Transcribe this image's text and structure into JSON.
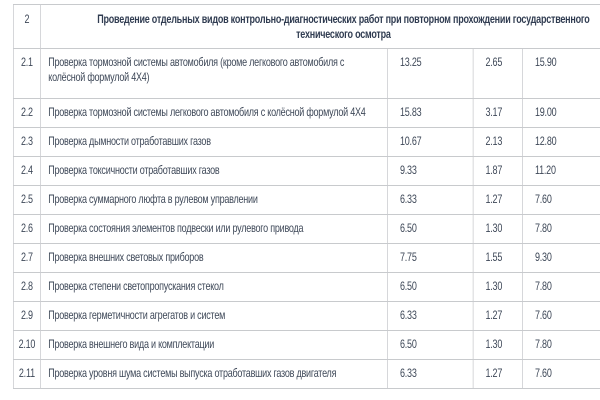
{
  "table": {
    "header": {
      "number": "2",
      "title_line1": "Проведение отдельных видов контрольно-диагностических работ при повторном прохождении государственного",
      "title_line2": "технического осмотра"
    },
    "rows": [
      {
        "num": "2.1",
        "desc": "Проверка тормозной системы автомобиля (кроме легкового автомобиля с колёсной формулой 4X4)",
        "v1": "13.25",
        "v2": "2.65",
        "v3": "15.90"
      },
      {
        "num": "2.2",
        "desc": "Проверка тормозной системы легкового автомобиля с колёсной формулой 4X4",
        "v1": "15.83",
        "v2": "3.17",
        "v3": "19.00"
      },
      {
        "num": "2.3",
        "desc": "Проверка дымности отработавших газов",
        "v1": "10.67",
        "v2": "2.13",
        "v3": "12.80"
      },
      {
        "num": "2.4",
        "desc": "Проверка токсичности отработавших газов",
        "v1": "9.33",
        "v2": "1.87",
        "v3": "11.20"
      },
      {
        "num": "2.5",
        "desc": "Проверка суммарного люфта в рулевом управлении",
        "v1": "6.33",
        "v2": "1.27",
        "v3": "7.60"
      },
      {
        "num": "2.6",
        "desc": "Проверка состояния элементов подвески или рулевого привода",
        "v1": "6.50",
        "v2": "1.30",
        "v3": "7.80"
      },
      {
        "num": "2.7",
        "desc": "Проверка внешних световых приборов",
        "v1": "7.75",
        "v2": "1.55",
        "v3": "9.30"
      },
      {
        "num": "2.8",
        "desc": "Проверка степени светопропускания стекол",
        "v1": "6.50",
        "v2": "1.30",
        "v3": "7.80"
      },
      {
        "num": "2.9",
        "desc": "Проверка герметичности агрегатов и систем",
        "v1": "6.33",
        "v2": "1.27",
        "v3": "7.60"
      },
      {
        "num": "2.10",
        "desc": "Проверка внешнего вида и комплектации",
        "v1": "6.50",
        "v2": "1.30",
        "v3": "7.80"
      },
      {
        "num": "2.11",
        "desc": "Проверка уровня шума системы выпуска отработавших газов двигателя",
        "v1": "6.33",
        "v2": "1.27",
        "v3": "7.60"
      }
    ],
    "colors": {
      "border": "#c8cacd",
      "body_text": "#3e4858",
      "header_text": "#303c51",
      "background": "#ffffff"
    }
  }
}
